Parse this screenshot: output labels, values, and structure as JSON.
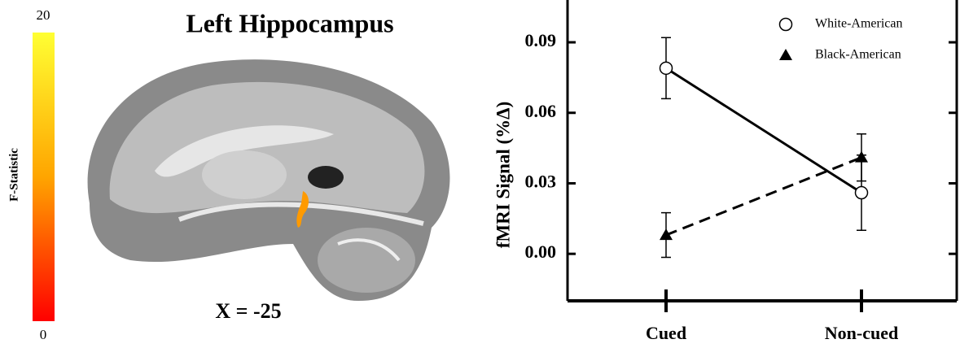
{
  "brain_panel": {
    "title": "Left Hippocampus",
    "slice_label": "X = -25",
    "colorbar": {
      "label": "F-Statistic",
      "max_label": "20",
      "min_label": "0",
      "colors": [
        "#ffff33",
        "#ffa500",
        "#ff0000"
      ]
    }
  },
  "chart_data": {
    "type": "line",
    "ylabel": "fMRI Signal (%Δ)",
    "categories": [
      "Cued",
      "Non-cued"
    ],
    "series": [
      {
        "name": "White-American",
        "color": "#000000",
        "marker": "circle",
        "dash": false,
        "values": [
          0.079,
          0.026
        ],
        "errors": [
          0.013,
          0.016
        ]
      },
      {
        "name": "Black-American",
        "color": "#000000",
        "marker": "triangle",
        "dash": true,
        "values": [
          0.008,
          0.041
        ],
        "errors": [
          0.0095,
          0.01
        ]
      }
    ],
    "ylim": [
      -0.02,
      0.108
    ],
    "yticks": [
      {
        "value": 0,
        "label": "0.00"
      },
      {
        "value": 0.03,
        "label": "0.03"
      },
      {
        "value": 0.06,
        "label": "0.06"
      },
      {
        "value": 0.09,
        "label": "0.09"
      }
    ],
    "legend": "upper right"
  }
}
